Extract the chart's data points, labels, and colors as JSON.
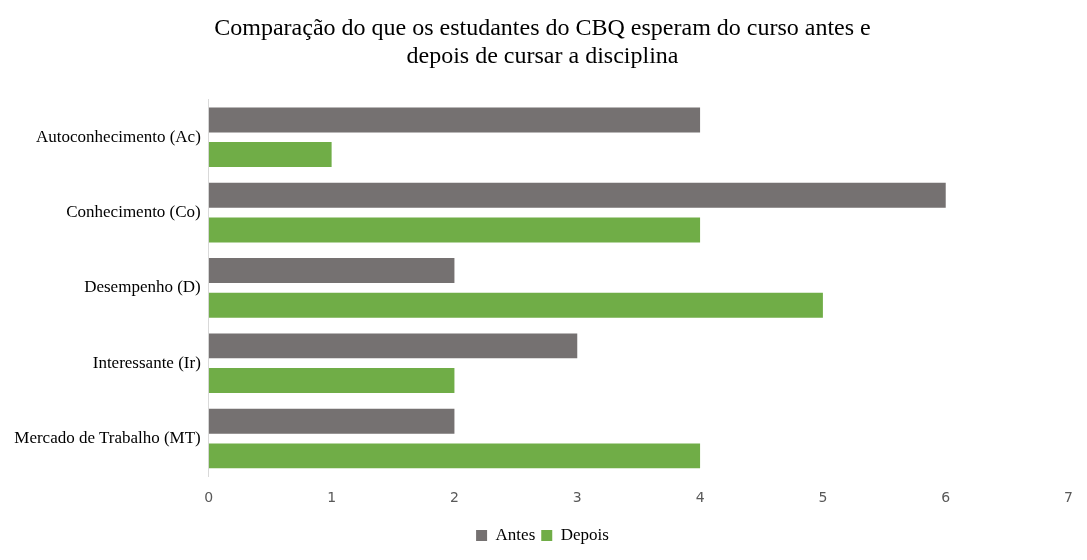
{
  "chart_data": {
    "type": "bar",
    "orientation": "horizontal",
    "title": "Comparação do que os estudantes do CBQ esperam do curso antes e depois de cursar a disciplina",
    "categories": [
      "Autoconhecimento (Ac)",
      "Conhecimento (Co)",
      "Desempenho (D)",
      "Interessante (Ir)",
      "Mercado de Trabalho (MT)"
    ],
    "series": [
      {
        "name": "Antes",
        "color": "#757171",
        "values": [
          4,
          6,
          2,
          3,
          2
        ]
      },
      {
        "name": "Depois",
        "color": "#70ad47",
        "values": [
          1,
          4,
          5,
          2,
          4
        ]
      }
    ],
    "xlim": [
      0,
      7
    ],
    "xticks": [
      0,
      1,
      2,
      3,
      4,
      5,
      6,
      7
    ],
    "grid": false,
    "legend": "bottom"
  }
}
